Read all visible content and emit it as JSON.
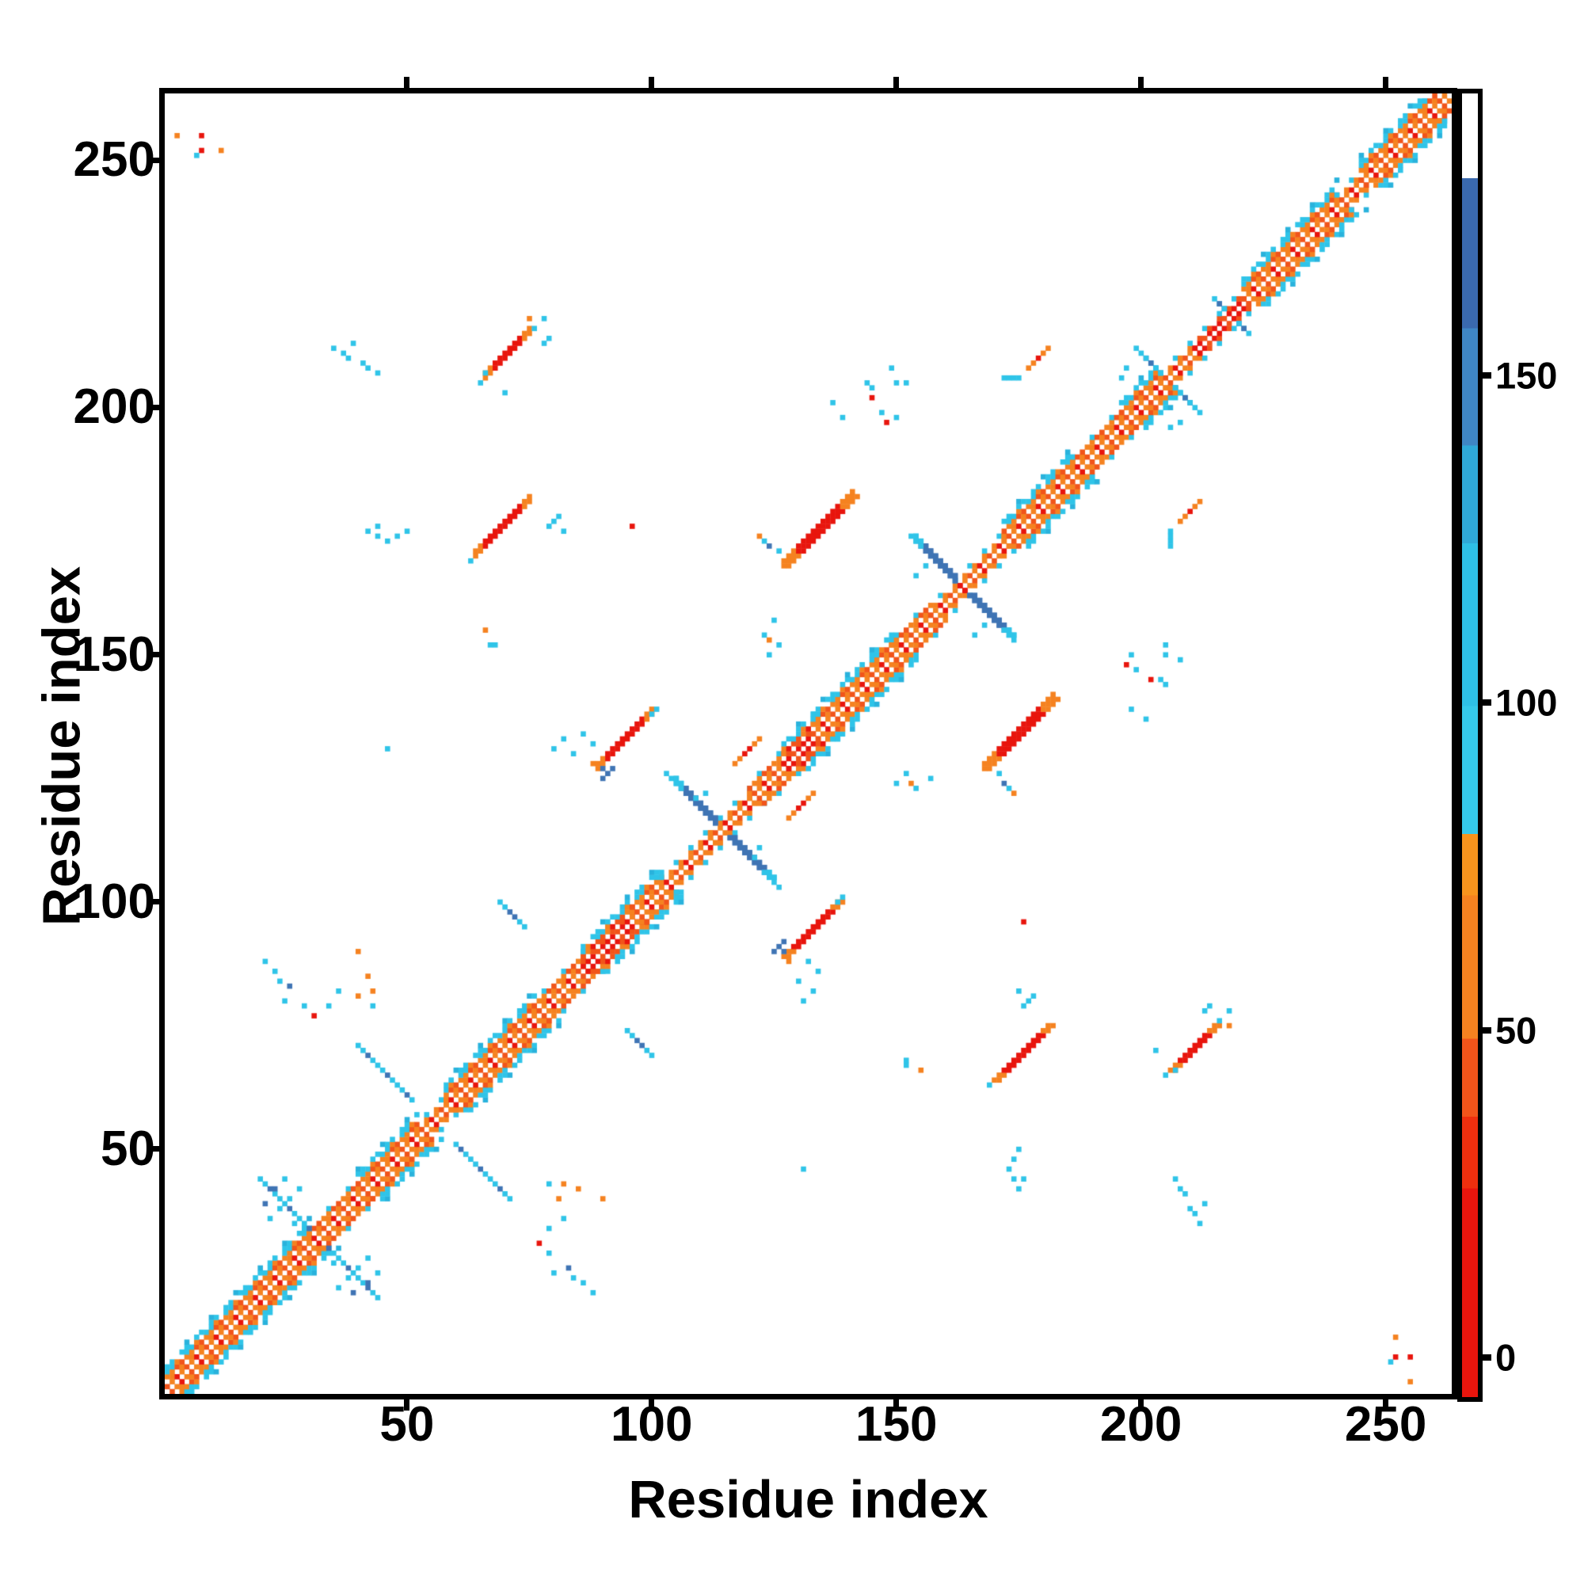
{
  "figure": {
    "x_axis": {
      "label": "Residue index",
      "ticks": [
        50,
        100,
        150,
        200,
        250
      ]
    },
    "y_axis": {
      "label": "Residue index",
      "ticks": [
        50,
        100,
        150,
        200,
        250
      ]
    },
    "colorbar": {
      "ticks": [
        0,
        50,
        100,
        150
      ],
      "range": [
        -6,
        193
      ],
      "stops": [
        [
          0.0,
          0.16,
          "#e8150d"
        ],
        [
          0.16,
          0.215,
          "#ee2f0e"
        ],
        [
          0.215,
          0.275,
          "#f1541a"
        ],
        [
          0.275,
          0.385,
          "#f58220"
        ],
        [
          0.385,
          0.432,
          "#f7941d"
        ],
        [
          0.432,
          0.53,
          "#35c9ea"
        ],
        [
          0.53,
          0.655,
          "#2ec0e6"
        ],
        [
          0.655,
          0.73,
          "#2fa9d8"
        ],
        [
          0.73,
          0.82,
          "#3f86c4"
        ],
        [
          0.82,
          0.935,
          "#3a69ae"
        ],
        [
          0.935,
          1.0,
          "#ffffff"
        ]
      ]
    }
  },
  "chart_data": {
    "type": "heatmap",
    "title": "",
    "xlabel": "Residue index",
    "ylabel": "Residue index",
    "n_residues": 263,
    "xlim": [
      0.5,
      263.5
    ],
    "ylim": [
      0.5,
      263.5
    ],
    "symmetric": true,
    "grid": false,
    "legend_position": "right-colorbar",
    "palette": {
      "r": "#e8150d",
      "q": "#f1541a",
      "o": "#f58220",
      "O": "#f7941d",
      "c": "#2fc4e8",
      "t": "#29b2dc",
      "b": "#3f74b4"
    },
    "diagonal_segments": [
      [
        1,
        30,
        4,
        0
      ],
      [
        30,
        40,
        3,
        0
      ],
      [
        40,
        52,
        4,
        0
      ],
      [
        52,
        58,
        2,
        0
      ],
      [
        58,
        76,
        4,
        0
      ],
      [
        76,
        86,
        3,
        0
      ],
      [
        86,
        96,
        4,
        1
      ],
      [
        96,
        102,
        4,
        0
      ],
      [
        102,
        112,
        2,
        0
      ],
      [
        112,
        120,
        2,
        0
      ],
      [
        120,
        127,
        3,
        0
      ],
      [
        127,
        133,
        4,
        1
      ],
      [
        133,
        149,
        4,
        0
      ],
      [
        149,
        157,
        3,
        0
      ],
      [
        157,
        163,
        2,
        0
      ],
      [
        163,
        172,
        2,
        0
      ],
      [
        172,
        186,
        4,
        0
      ],
      [
        186,
        196,
        3,
        0
      ],
      [
        196,
        204,
        4,
        0
      ],
      [
        204,
        211,
        2,
        0
      ],
      [
        211,
        221,
        2,
        1
      ],
      [
        221,
        240,
        4,
        0
      ],
      [
        240,
        245,
        2,
        0
      ],
      [
        245,
        258,
        4,
        0
      ],
      [
        258,
        262,
        3,
        0
      ]
    ],
    "parallel_blobs": [
      [
        66,
        206,
        10,
        2,
        2
      ],
      [
        64,
        170,
        12,
        2,
        2
      ],
      [
        127,
        168,
        15,
        3,
        3
      ],
      [
        89,
        127,
        12,
        2,
        2
      ],
      [
        117,
        128,
        6,
        1,
        2
      ],
      [
        177,
        208,
        5,
        1,
        2
      ]
    ],
    "antiparallel_strokes": [
      [
        104,
        125,
        21,
        2,
        "b"
      ],
      [
        153,
        174,
        21,
        2,
        "b"
      ],
      [
        199,
        212,
        12,
        1,
        "c"
      ],
      [
        215,
        222,
        7,
        1,
        "c"
      ],
      [
        40,
        71,
        12,
        1,
        "c"
      ],
      [
        69,
        100,
        6,
        1,
        "b"
      ],
      [
        20,
        44,
        11,
        1,
        "c"
      ]
    ],
    "specks": [
      [
        3,
        255,
        "o"
      ],
      [
        8,
        255,
        "r"
      ],
      [
        8,
        252,
        "r"
      ],
      [
        7,
        251,
        "c"
      ],
      [
        12,
        252,
        "o"
      ],
      [
        70,
        203,
        "c"
      ],
      [
        78,
        213,
        "c"
      ],
      [
        79,
        214,
        "c"
      ],
      [
        76,
        216,
        "c"
      ],
      [
        78,
        218,
        "c"
      ],
      [
        75,
        218,
        "o"
      ],
      [
        65,
        205,
        "c"
      ],
      [
        66,
        207,
        "c"
      ],
      [
        35,
        212,
        "c"
      ],
      [
        37,
        211,
        "c"
      ],
      [
        38,
        210,
        "c"
      ],
      [
        41,
        209,
        "c"
      ],
      [
        42,
        208,
        "c"
      ],
      [
        44,
        207,
        "c"
      ],
      [
        39,
        213,
        "c"
      ],
      [
        79,
        176,
        "c"
      ],
      [
        80,
        177,
        "c"
      ],
      [
        81,
        178,
        "c"
      ],
      [
        82,
        175,
        "c"
      ],
      [
        96,
        176,
        "r"
      ],
      [
        63,
        169,
        "c"
      ],
      [
        42,
        175,
        "c"
      ],
      [
        44,
        174,
        "c"
      ],
      [
        46,
        173,
        "c"
      ],
      [
        48,
        174,
        "c"
      ],
      [
        44,
        176,
        "c"
      ],
      [
        50,
        175,
        "c"
      ],
      [
        66,
        155,
        "o"
      ],
      [
        67,
        152,
        "c"
      ],
      [
        68,
        152,
        "c"
      ],
      [
        126,
        171,
        "c"
      ],
      [
        125,
        157,
        "c"
      ],
      [
        126,
        152,
        "c"
      ],
      [
        124,
        150,
        "c"
      ],
      [
        124,
        153,
        "o"
      ],
      [
        123,
        154,
        "c"
      ],
      [
        139,
        198,
        "c"
      ],
      [
        145,
        204,
        "c"
      ],
      [
        150,
        205,
        "c"
      ],
      [
        152,
        205,
        "c"
      ],
      [
        147,
        199,
        "c"
      ],
      [
        150,
        198,
        "c"
      ],
      [
        148,
        197,
        "r"
      ],
      [
        144,
        205,
        "c"
      ],
      [
        149,
        208,
        "c"
      ],
      [
        145,
        202,
        "r"
      ],
      [
        137,
        201,
        "c"
      ],
      [
        122,
        174,
        "o"
      ],
      [
        123,
        173,
        "c"
      ],
      [
        124,
        172,
        "b"
      ],
      [
        80,
        131,
        "c"
      ],
      [
        82,
        133,
        "c"
      ],
      [
        84,
        130,
        "c"
      ],
      [
        86,
        134,
        "c"
      ],
      [
        88,
        132,
        "c"
      ],
      [
        46,
        131,
        "c"
      ],
      [
        100,
        138,
        "c"
      ],
      [
        88,
        128,
        "o"
      ],
      [
        90,
        125,
        "b"
      ],
      [
        91,
        126,
        "b"
      ],
      [
        92,
        127,
        "b"
      ],
      [
        90,
        127,
        "b"
      ],
      [
        21,
        88,
        "c"
      ],
      [
        23,
        86,
        "c"
      ],
      [
        24,
        84,
        "c"
      ],
      [
        26,
        83,
        "b"
      ],
      [
        25,
        80,
        "c"
      ],
      [
        29,
        79,
        "c"
      ],
      [
        31,
        77,
        "r"
      ],
      [
        40,
        90,
        "o"
      ],
      [
        42,
        85,
        "o"
      ],
      [
        43,
        82,
        "o"
      ],
      [
        40,
        81,
        "o"
      ],
      [
        34,
        79,
        "c"
      ],
      [
        36,
        82,
        "c"
      ],
      [
        43,
        79,
        "c"
      ],
      [
        22,
        36,
        "c"
      ],
      [
        24,
        38,
        "c"
      ],
      [
        26,
        40,
        "c"
      ],
      [
        23,
        42,
        "b"
      ],
      [
        27,
        35,
        "c"
      ],
      [
        28,
        42,
        "c"
      ],
      [
        25,
        44,
        "c"
      ],
      [
        21,
        39,
        "b"
      ],
      [
        103,
        126,
        "c"
      ],
      [
        109,
        121,
        "c"
      ],
      [
        111,
        122,
        "c"
      ],
      [
        196,
        206,
        "c"
      ],
      [
        197,
        208,
        "c"
      ],
      [
        172,
        206,
        "c"
      ],
      [
        173,
        206,
        "c"
      ],
      [
        174,
        206,
        "c"
      ],
      [
        175,
        206,
        "c"
      ],
      [
        101,
        139,
        "c"
      ],
      [
        154,
        166,
        "c"
      ],
      [
        156,
        168,
        "c"
      ]
    ]
  }
}
